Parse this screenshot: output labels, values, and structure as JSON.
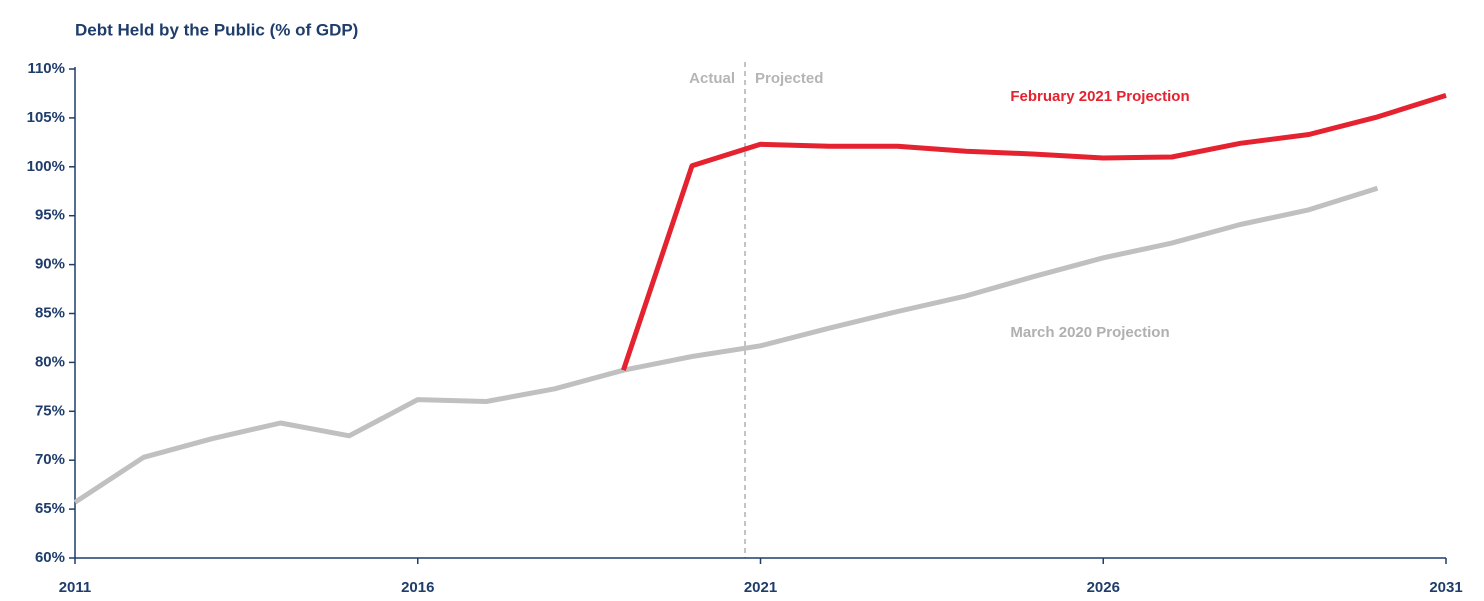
{
  "chart_data": {
    "type": "line",
    "title": "Debt Held by the Public (% of GDP)",
    "annotations": [
      "Actual",
      "Projected"
    ],
    "x": [
      2011,
      2012,
      2013,
      2014,
      2015,
      2016,
      2017,
      2018,
      2019,
      2020,
      2021,
      2022,
      2023,
      2024,
      2025,
      2026,
      2027,
      2028,
      2029,
      2030,
      2031
    ],
    "series": [
      {
        "name": "March 2020 Projection",
        "color": "#c0c0c0",
        "values": [
          65.7,
          70.3,
          72.2,
          73.8,
          72.5,
          76.2,
          76.0,
          77.3,
          79.2,
          80.6,
          81.7,
          83.5,
          85.2,
          86.8,
          88.8,
          90.7,
          92.2,
          94.1,
          95.6,
          97.8,
          null
        ]
      },
      {
        "name": "February 2021 Projection",
        "color": "#e5222f",
        "values": [
          null,
          null,
          null,
          null,
          null,
          null,
          null,
          null,
          79.2,
          100.1,
          102.3,
          102.1,
          102.1,
          101.6,
          101.3,
          100.9,
          101.0,
          102.4,
          103.3,
          105.1,
          107.3
        ]
      }
    ],
    "xlim": [
      2011,
      2031
    ],
    "xticks": [
      2011,
      2016,
      2021,
      2026,
      2031
    ],
    "ylim": [
      60,
      110
    ],
    "yticks": [
      {
        "value": 60,
        "label": "60%"
      },
      {
        "value": 65,
        "label": "65%"
      },
      {
        "value": 70,
        "label": "70%"
      },
      {
        "value": 75,
        "label": "75%"
      },
      {
        "value": 80,
        "label": "80%"
      },
      {
        "value": 85,
        "label": "85%"
      },
      {
        "value": 90,
        "label": "90%"
      },
      {
        "value": 95,
        "label": "95%"
      },
      {
        "value": 100,
        "label": "100%"
      },
      {
        "value": 105,
        "label": "105%"
      },
      {
        "value": 110,
        "label": "110%"
      }
    ]
  }
}
